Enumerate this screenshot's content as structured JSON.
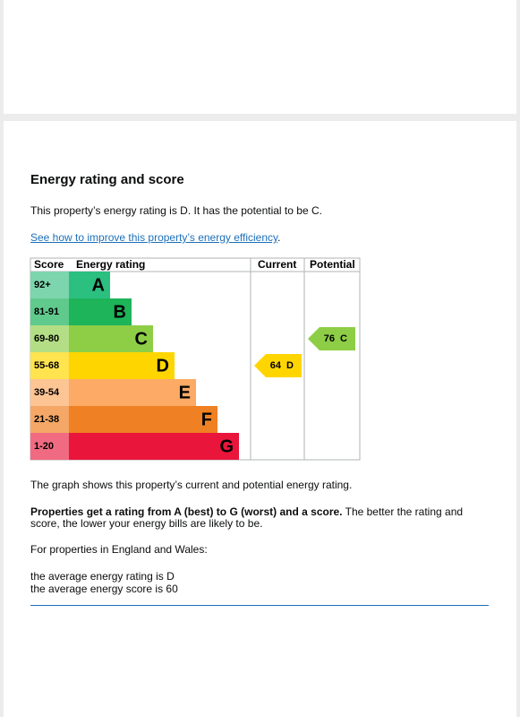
{
  "page": {
    "title": "Energy rating and score",
    "intro": "This property’s energy rating is D. It has the potential to be C.",
    "link": "See how to improve this property’s energy efficiency",
    "link_suffix": ".",
    "graph_note": "The graph shows this property’s current and potential energy rating.",
    "explain_bold": "Properties get a rating from A (best) to G (worst) and a score.",
    "explain_rest": " The better the rating and score, the lower your energy bills are likely to be.",
    "region": "For properties in England and Wales:",
    "average_rating": "the average energy rating is D",
    "average_score": "the average energy score is 60"
  },
  "energy_chart": {
    "headers": [
      "Score",
      "Energy rating",
      "Current",
      "Potential"
    ],
    "bands": [
      {
        "range": "92+",
        "letter": "A",
        "color": "#2bbf80",
        "light": "#7dd5ad"
      },
      {
        "range": "81-91",
        "letter": "B",
        "color": "#1db45a",
        "light": "#5fca8c"
      },
      {
        "range": "69-80",
        "letter": "C",
        "color": "#8dce46",
        "light": "#b3de85"
      },
      {
        "range": "55-68",
        "letter": "D",
        "color": "#ffd500",
        "light": "#ffe34f"
      },
      {
        "range": "39-54",
        "letter": "E",
        "color": "#fcaa65",
        "light": "#fdc494"
      },
      {
        "range": "21-38",
        "letter": "F",
        "color": "#ef8023",
        "light": "#f4a766"
      },
      {
        "range": "1-20",
        "letter": "G",
        "color": "#e9153b",
        "light": "#f06a82"
      }
    ],
    "current": {
      "score": 64,
      "rating": "D"
    },
    "potential": {
      "score": 76,
      "rating": "C"
    }
  }
}
